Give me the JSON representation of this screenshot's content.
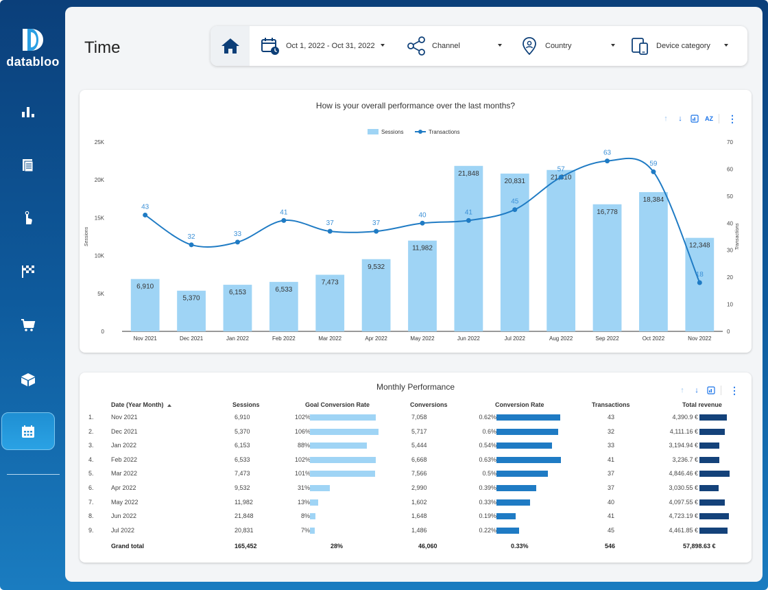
{
  "brand": {
    "name": "databloo"
  },
  "sidebar": {
    "items": [
      {
        "icon": "bar-chart-icon"
      },
      {
        "icon": "document-icon"
      },
      {
        "icon": "pointer-hand-icon"
      },
      {
        "icon": "checkered-flag-icon"
      },
      {
        "icon": "shopping-cart-icon"
      },
      {
        "icon": "package-box-icon"
      },
      {
        "icon": "calendar-icon",
        "active": true
      }
    ]
  },
  "page": {
    "title": "Time"
  },
  "filters": {
    "date": "Oct 1, 2022 - Oct 31, 2022",
    "channel": "Channel",
    "country": "Country",
    "device": "Device category"
  },
  "colors": {
    "sessions_bar": "#9fd4f5",
    "transactions_line": "#1f7bc4",
    "goal_bar": "#9fd4f5",
    "conv_bar": "#1f7bc4",
    "revenue_bar": "#14427a"
  },
  "chart_data": {
    "type": "bar",
    "title": "How is your overall performance over the last months?",
    "categories": [
      "Nov 2021",
      "Dec 2021",
      "Jan 2022",
      "Feb 2022",
      "Mar 2022",
      "Apr 2022",
      "May 2022",
      "Jun 2022",
      "Jul 2022",
      "Aug 2022",
      "Sep 2022",
      "Oct 2022",
      "Nov 2022"
    ],
    "series": [
      {
        "name": "Sessions",
        "type": "bar",
        "axis": "left",
        "values": [
          6910,
          5370,
          6153,
          6533,
          7473,
          9532,
          11982,
          21848,
          20831,
          21310,
          16778,
          18384,
          12348
        ],
        "labels": [
          "6,910",
          "5,370",
          "6,153",
          "6,533",
          "7,473",
          "9,532",
          "11,982",
          "21,848",
          "20,831",
          "21,310",
          "16,778",
          "18,384",
          "12,348"
        ]
      },
      {
        "name": "Transactions",
        "type": "line",
        "axis": "right",
        "values": [
          43,
          32,
          33,
          41,
          37,
          37,
          40,
          41,
          45,
          57,
          63,
          59,
          18
        ]
      }
    ],
    "ylabel": "Sessions",
    "y2label": "Transactions",
    "ylim": [
      0,
      25000
    ],
    "y2lim": [
      0,
      70
    ],
    "yticks": [
      "0",
      "5K",
      "10K",
      "15K",
      "20K",
      "25K"
    ],
    "y2ticks": [
      "0",
      "10",
      "20",
      "30",
      "40",
      "50",
      "60",
      "70"
    ],
    "legend": "top-center",
    "grid": false
  },
  "table": {
    "title": "Monthly Performance",
    "headers": {
      "date": "Date (Year Month)",
      "sessions": "Sessions",
      "goal": "Goal Conversion Rate",
      "conversions": "Conversions",
      "conv_rate": "Conversion Rate",
      "transactions": "Transactions",
      "revenue": "Total revenue"
    },
    "rows": [
      {
        "n": "1.",
        "date": "Nov 2021",
        "sessions": "6,910",
        "goal": "102%",
        "goal_v": 102,
        "conversions": "7,058",
        "conv_rate": "0.62%",
        "conv_v": 0.62,
        "transactions": "43",
        "revenue": "4,390.9 €",
        "rev_v": 4390.9
      },
      {
        "n": "2.",
        "date": "Dec 2021",
        "sessions": "5,370",
        "goal": "106%",
        "goal_v": 106,
        "conversions": "5,717",
        "conv_rate": "0.6%",
        "conv_v": 0.6,
        "transactions": "32",
        "revenue": "4,111.16 €",
        "rev_v": 4111.16
      },
      {
        "n": "3.",
        "date": "Jan 2022",
        "sessions": "6,153",
        "goal": "88%",
        "goal_v": 88,
        "conversions": "5,444",
        "conv_rate": "0.54%",
        "conv_v": 0.54,
        "transactions": "33",
        "revenue": "3,194.94 €",
        "rev_v": 3194.94
      },
      {
        "n": "4.",
        "date": "Feb 2022",
        "sessions": "6,533",
        "goal": "102%",
        "goal_v": 102,
        "conversions": "6,668",
        "conv_rate": "0.63%",
        "conv_v": 0.63,
        "transactions": "41",
        "revenue": "3,236.7 €",
        "rev_v": 3236.7
      },
      {
        "n": "5.",
        "date": "Mar 2022",
        "sessions": "7,473",
        "goal": "101%",
        "goal_v": 101,
        "conversions": "7,566",
        "conv_rate": "0.5%",
        "conv_v": 0.5,
        "transactions": "37",
        "revenue": "4,846.46 €",
        "rev_v": 4846.46
      },
      {
        "n": "6.",
        "date": "Apr 2022",
        "sessions": "9,532",
        "goal": "31%",
        "goal_v": 31,
        "conversions": "2,990",
        "conv_rate": "0.39%",
        "conv_v": 0.39,
        "transactions": "37",
        "revenue": "3,030.55 €",
        "rev_v": 3030.55
      },
      {
        "n": "7.",
        "date": "May 2022",
        "sessions": "11,982",
        "goal": "13%",
        "goal_v": 13,
        "conversions": "1,602",
        "conv_rate": "0.33%",
        "conv_v": 0.33,
        "transactions": "40",
        "revenue": "4,097.55 €",
        "rev_v": 4097.55
      },
      {
        "n": "8.",
        "date": "Jun 2022",
        "sessions": "21,848",
        "goal": "8%",
        "goal_v": 8,
        "conversions": "1,648",
        "conv_rate": "0.19%",
        "conv_v": 0.19,
        "transactions": "41",
        "revenue": "4,723.19 €",
        "rev_v": 4723.19
      },
      {
        "n": "9.",
        "date": "Jul 2022",
        "sessions": "20,831",
        "goal": "7%",
        "goal_v": 7,
        "conversions": "1,486",
        "conv_rate": "0.22%",
        "conv_v": 0.22,
        "transactions": "45",
        "revenue": "4,461.85 €",
        "rev_v": 4461.85
      }
    ],
    "total": {
      "label": "Grand total",
      "sessions": "165,452",
      "goal": "28%",
      "conversions": "46,060",
      "conv_rate": "0.33%",
      "transactions": "546",
      "revenue": "57,898.63 €"
    }
  }
}
